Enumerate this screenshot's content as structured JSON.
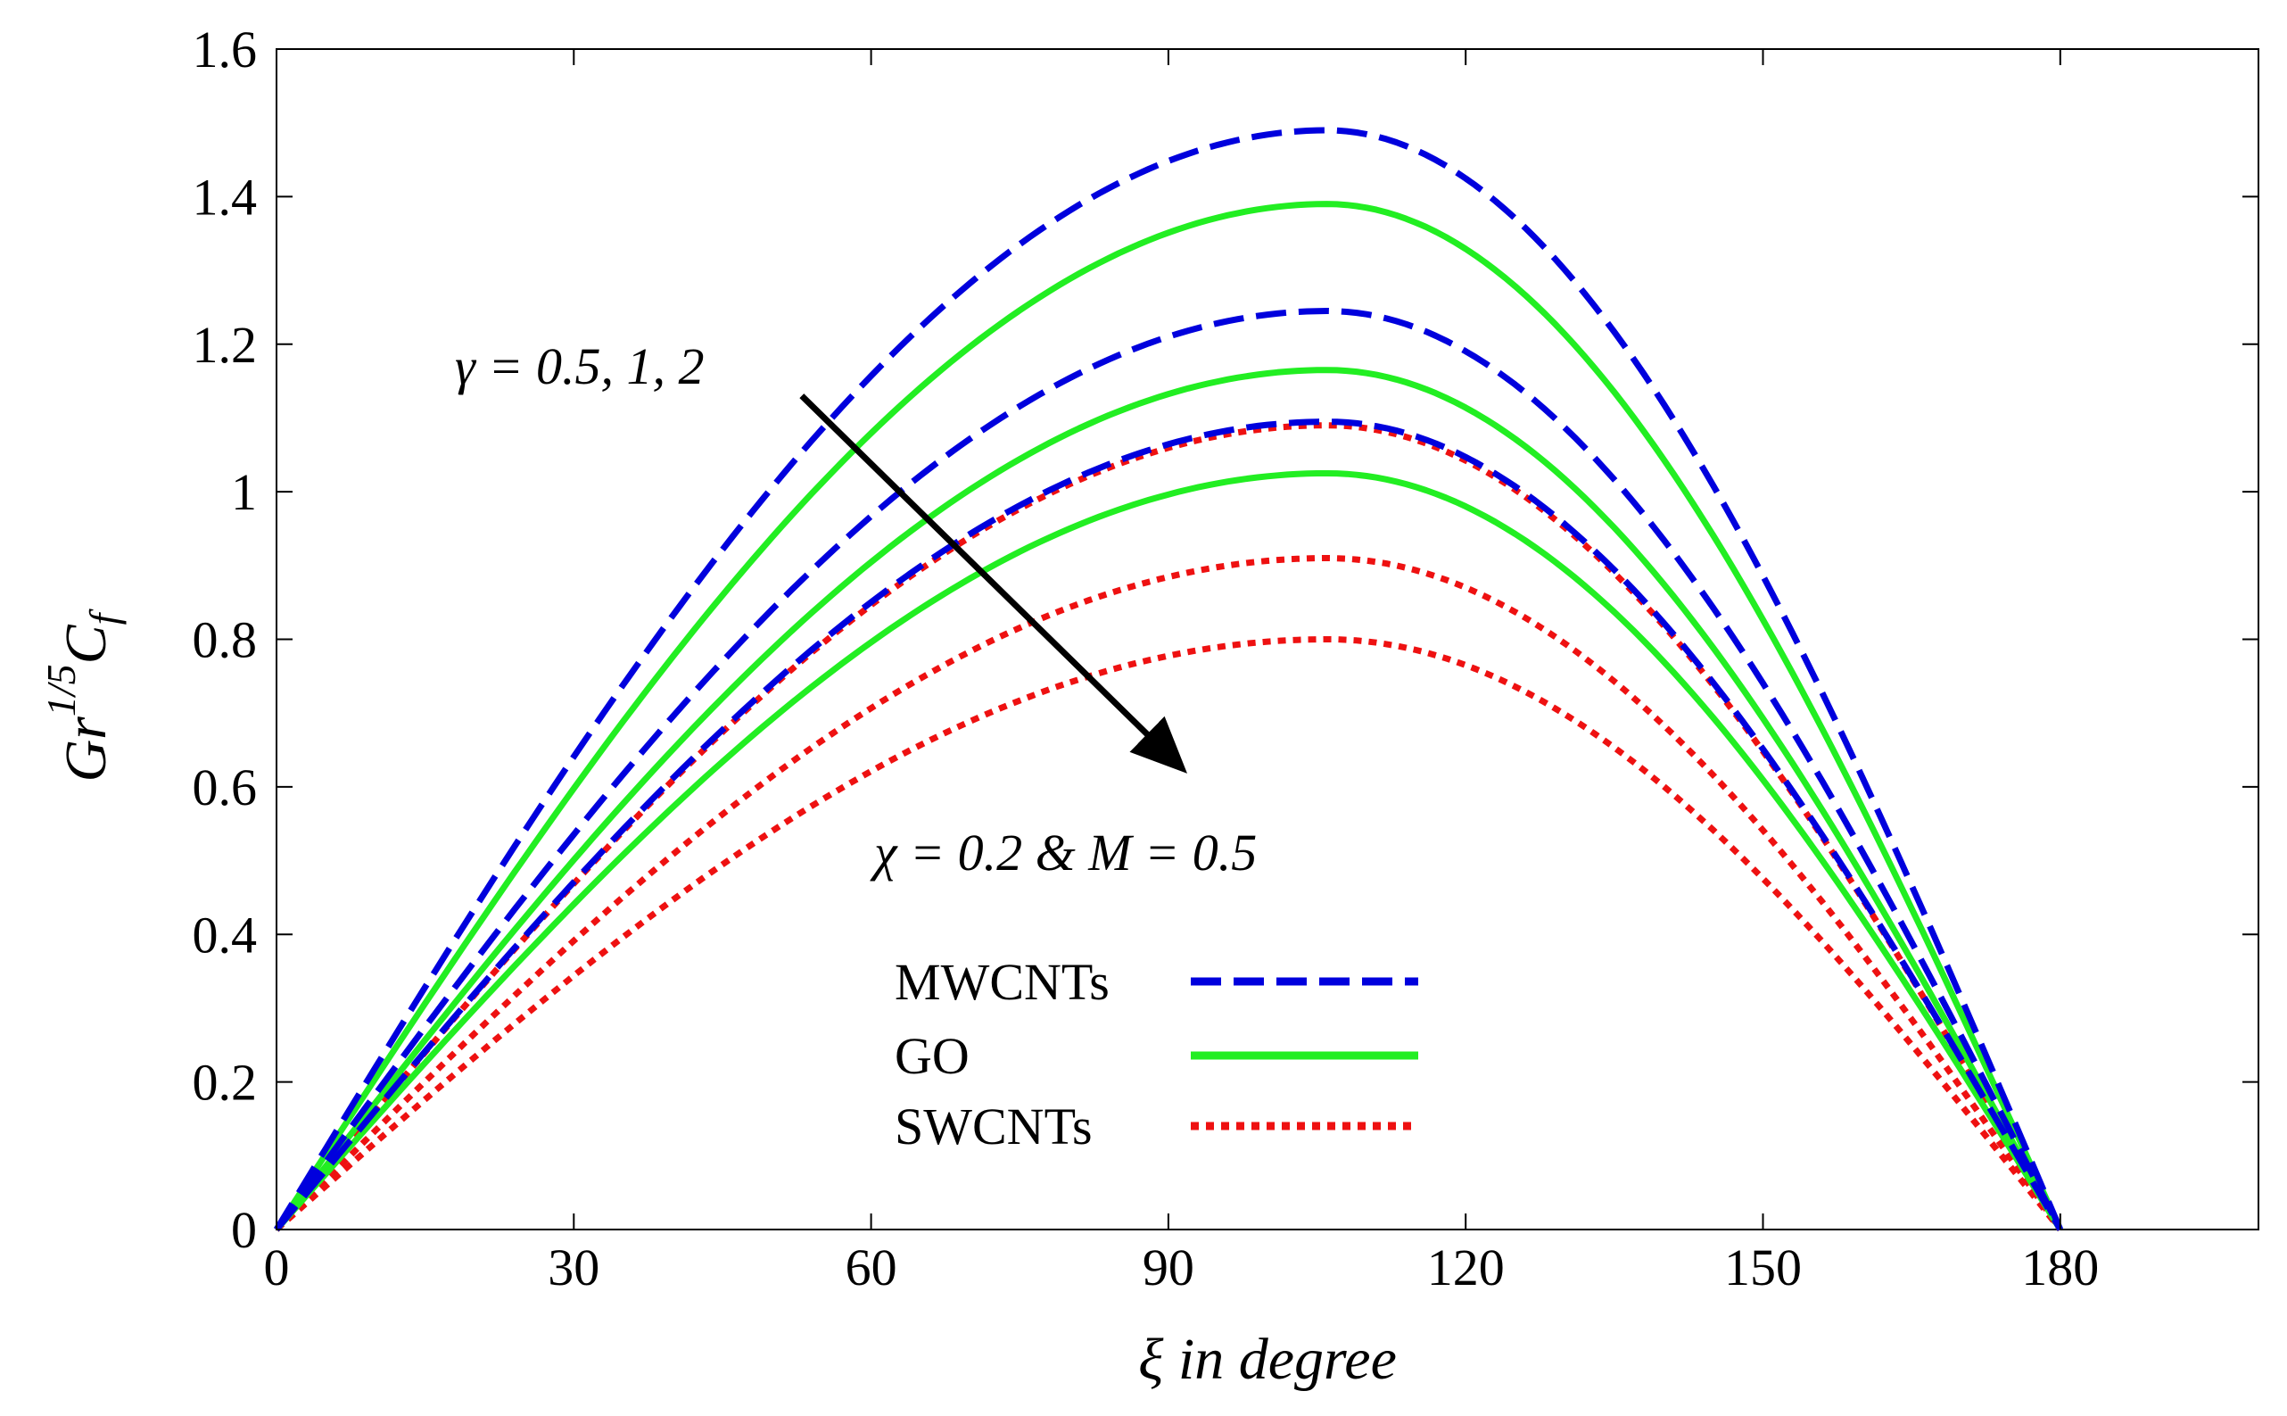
{
  "chart_data": {
    "type": "line",
    "title": "",
    "xlabel": "ξ in degree",
    "ylabel": {
      "base": "Gr",
      "exponent": "1/5",
      "symbol": "C",
      "subscript": "f"
    },
    "xlim": [
      0,
      200
    ],
    "ylim": [
      0,
      1.6
    ],
    "xticks": [
      0,
      30,
      60,
      90,
      120,
      150,
      180
    ],
    "yticks": [
      0,
      0.2,
      0.4,
      0.6,
      0.8,
      1,
      1.2,
      1.4,
      1.6
    ],
    "ytick_labels": [
      "0",
      "0.2",
      "0.4",
      "0.6",
      "0.8",
      "1",
      "1.2",
      "1.4",
      "1.6"
    ],
    "curve_shape": {
      "x_start": 0,
      "x_peak": 106,
      "x_end": 180
    },
    "series": [
      {
        "name": "MWCNTs",
        "gamma": 0.5,
        "peak": 1.49,
        "color": "#0000dd",
        "style": "dashed"
      },
      {
        "name": "MWCNTs",
        "gamma": 1,
        "peak": 1.245,
        "color": "#0000dd",
        "style": "dashed"
      },
      {
        "name": "MWCNTs",
        "gamma": 2,
        "peak": 1.095,
        "color": "#0000dd",
        "style": "dashed"
      },
      {
        "name": "GO",
        "gamma": 0.5,
        "peak": 1.39,
        "color": "#22ee22",
        "style": "solid"
      },
      {
        "name": "GO",
        "gamma": 1,
        "peak": 1.165,
        "color": "#22ee22",
        "style": "solid"
      },
      {
        "name": "GO",
        "gamma": 2,
        "peak": 1.025,
        "color": "#22ee22",
        "style": "solid"
      },
      {
        "name": "SWCNTs",
        "gamma": 0.5,
        "peak": 1.09,
        "color": "#ee1111",
        "style": "dotted"
      },
      {
        "name": "SWCNTs",
        "gamma": 1,
        "peak": 0.91,
        "color": "#ee1111",
        "style": "dotted"
      },
      {
        "name": "SWCNTs",
        "gamma": 2,
        "peak": 0.8,
        "color": "#ee1111",
        "style": "dotted"
      }
    ],
    "legend": {
      "placement": "lower-center",
      "entries": [
        {
          "label": "MWCNTs",
          "color": "#0000dd",
          "style": "dashed"
        },
        {
          "label": "GO",
          "color": "#22ee22",
          "style": "solid"
        },
        {
          "label": "SWCNTs",
          "color": "#ee1111",
          "style": "dotted"
        }
      ]
    },
    "annotations": {
      "gamma_label": "γ = 0.5, 1, 2",
      "fixed_params": "χ = 0.2 & M = 0.5",
      "arrow": {
        "from": [
          53,
          1.13
        ],
        "to": [
          91,
          0.63
        ]
      }
    }
  }
}
